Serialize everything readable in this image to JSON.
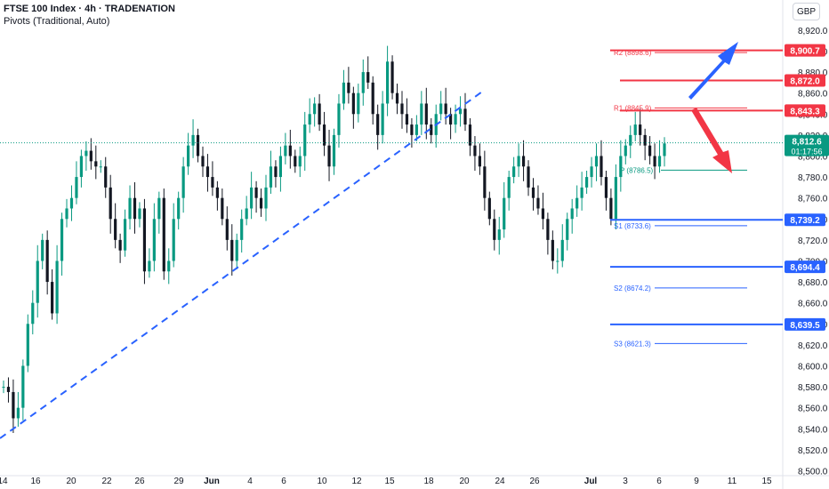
{
  "header": {
    "title": "FTSE 100 Index · 4h · TRADENATION",
    "subtitle": "Pivots (Traditional, Auto)",
    "currency": "GBP"
  },
  "chart_data": {
    "type": "candlestick",
    "y_ticks": [
      "8,500.0",
      "8,520.0",
      "8,540.0",
      "8,560.0",
      "8,580.0",
      "8,600.0",
      "8,620.0",
      "8,640.0",
      "8,660.0",
      "8,680.0",
      "8,700.0",
      "8,720.0",
      "8,740.0",
      "8,760.0",
      "8,780.0",
      "8,800.0",
      "8,820.0",
      "8,840.0",
      "8,860.0",
      "8,880.0",
      "8,900.0",
      "8,920.0"
    ],
    "ylim": [
      8497,
      8936
    ],
    "x_ticks": [
      "14",
      "16",
      "20",
      "22",
      "26",
      "29",
      "Jun",
      "4",
      "6",
      "10",
      "12",
      "15",
      "18",
      "20",
      "24",
      "26",
      "Jul",
      "3",
      "6",
      "9",
      "11",
      "15"
    ],
    "last_price": "8,812.6",
    "countdown": "01:17:56",
    "pivots": [
      {
        "label": "R2 (8898.6)",
        "value": 8898.6
      },
      {
        "label": "R1 (8845.9)",
        "value": 8845.9
      },
      {
        "label": "P (8786.5)",
        "value": 8786.5
      },
      {
        "label": "S1 (8733.6)",
        "value": 8733.6
      },
      {
        "label": "S2 (8674.2)",
        "value": 8674.2
      },
      {
        "label": "S3 (8621.3)",
        "value": 8621.3
      }
    ],
    "resistance_levels": [
      "8,900.7",
      "8,872.0",
      "8,843.3"
    ],
    "support_levels": [
      "8,739.2",
      "8,694.4",
      "8,639.5"
    ],
    "resistance_values": [
      8900.7,
      8872.0,
      8843.3
    ],
    "support_values": [
      8739.2,
      8694.4,
      8639.5
    ],
    "trendline": {
      "from": [
        8533,
        "14"
      ],
      "to": [
        8882,
        "20"
      ]
    },
    "price_path": [
      8580,
      8575,
      8550,
      8560,
      8600,
      8640,
      8660,
      8700,
      8720,
      8680,
      8650,
      8700,
      8740,
      8750,
      8760,
      8780,
      8800,
      8805,
      8795,
      8790,
      8790,
      8770,
      8740,
      8720,
      8710,
      8740,
      8760,
      8740,
      8750,
      8690,
      8700,
      8740,
      8760,
      8690,
      8700,
      8740,
      8760,
      8790,
      8810,
      8820,
      8800,
      8790,
      8780,
      8770,
      8760,
      8740,
      8720,
      8700,
      8720,
      8740,
      8750,
      8770,
      8760,
      8750,
      8770,
      8790,
      8780,
      8800,
      8810,
      8800,
      8790,
      8800,
      8830,
      8840,
      8850,
      8830,
      8810,
      8790,
      8820,
      8850,
      8870,
      8860,
      8840,
      8860,
      8880,
      8870,
      8840,
      8820,
      8850,
      8890,
      8860,
      8850,
      8840,
      8830,
      8820,
      8830,
      8850,
      8830,
      8820,
      8840,
      8850,
      8840,
      8830,
      8840,
      8845,
      8830,
      8810,
      8800,
      8790,
      8760,
      8740,
      8720,
      8730,
      8760,
      8780,
      8790,
      8800,
      8790,
      8770,
      8760,
      8750,
      8740,
      8720,
      8700,
      8700,
      8720,
      8740,
      8750,
      8760,
      8770,
      8780,
      8790,
      8800,
      8780,
      8760,
      8740,
      8780,
      8800,
      8810,
      8820,
      8830,
      8820,
      8810,
      8800,
      8790,
      8800,
      8812
    ]
  },
  "annotations": {
    "up_arrow_color": "#2962ff",
    "down_arrow_color": "#f23645",
    "up_candle_color": "#089981",
    "down_candle_color": "#131722",
    "resistance_color": "#f23645",
    "support_color": "#2962ff",
    "price_label_color": "#089981"
  }
}
